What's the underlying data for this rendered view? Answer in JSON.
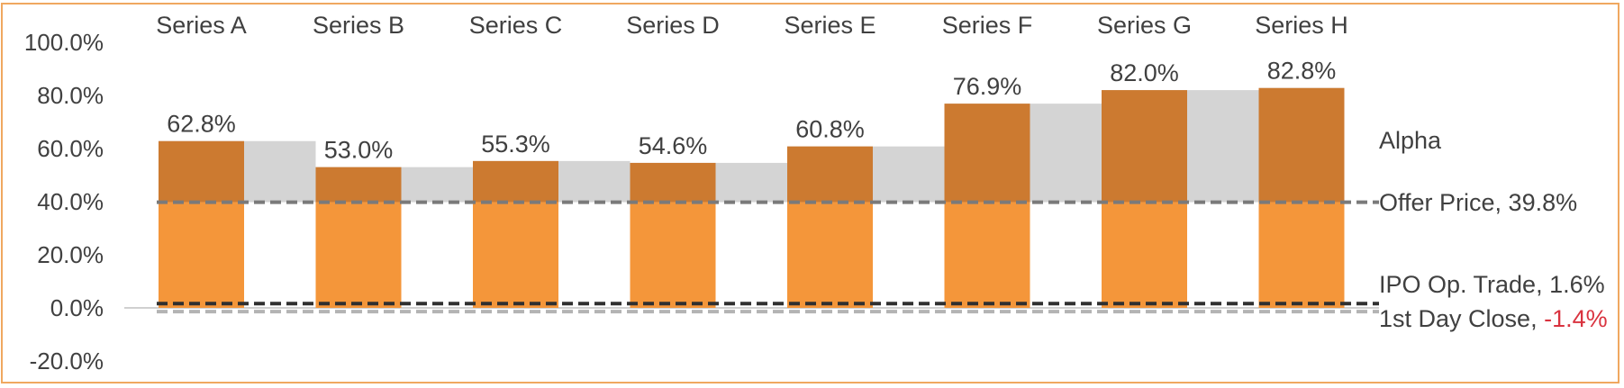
{
  "chart_data": {
    "type": "bar",
    "categories": [
      "Series A",
      "Series B",
      "Series C",
      "Series D",
      "Series E",
      "Series F",
      "Series G",
      "Series H"
    ],
    "values": [
      62.8,
      53.0,
      55.3,
      54.6,
      60.8,
      76.9,
      82.0,
      82.8
    ],
    "value_labels": [
      "62.8%",
      "53.0%",
      "55.3%",
      "54.6%",
      "60.8%",
      "76.9%",
      "82.0%",
      "82.8%"
    ],
    "y_ticks": [
      "100.0%",
      "80.0%",
      "60.0%",
      "40.0%",
      "20.0%",
      "0.0%",
      "-20.0%"
    ],
    "y_tick_values": [
      100,
      80,
      60,
      40,
      20,
      0,
      -20
    ],
    "ylim": [
      -20,
      100
    ],
    "grid": false,
    "series": [
      {
        "name": "Alpha"
      }
    ],
    "reference_lines": [
      {
        "label": "Offer Price, ",
        "value_text": "39.8%",
        "value": 39.8
      },
      {
        "label": "IPO Op. Trade, ",
        "value_text": "1.6%",
        "value": 1.6
      },
      {
        "label": "1st Day Close, ",
        "value_text": "-1.4%",
        "value": -1.4
      }
    ],
    "colors": {
      "bar_lower": "#f4963a",
      "bar_upper": "#cc7a30",
      "step_area": "#d4d4d4",
      "offer_line": "#7a7a7a",
      "ipo_line": "#303030",
      "close_line": "#b4b4b4",
      "negative_text": "#d9333f",
      "border": "#f0a860"
    }
  }
}
